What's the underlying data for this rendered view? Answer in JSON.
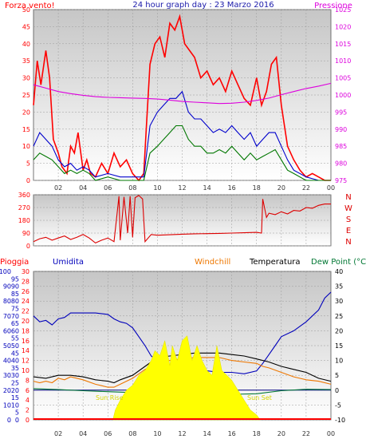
{
  "colors": {
    "wind": "#ff0000",
    "gust": "#0000cc",
    "avg": "#007700",
    "pressure": "#dd00dd",
    "direction": "#dd0000",
    "humidity": "#0000bb",
    "temperature": "#000000",
    "windchill": "#ee7700",
    "dewpoint": "#007733",
    "solar": "#ffff00",
    "rain": "#ff0000",
    "plot_bg_top": "#c8c8c8",
    "plot_bg_bottom": "#ffffff"
  },
  "chart_data": [
    {
      "id": "wind",
      "type": "line",
      "title": "24 hour graph day : 23 Marzo 2016",
      "ylabel": "Forza vento!",
      "y2label": "Pressione",
      "x_ticks": [
        "02",
        "04",
        "06",
        "08",
        "10",
        "12",
        "14",
        "16",
        "18",
        "20",
        "22",
        "00"
      ],
      "ylim": [
        0,
        50
      ],
      "y_ticks": [
        0,
        5,
        10,
        15,
        20,
        25,
        30,
        35,
        40,
        45,
        50
      ],
      "y2lim": [
        975,
        1025
      ],
      "y2_ticks": [
        975,
        980,
        985,
        990,
        995,
        1000,
        1005,
        1010,
        1015,
        1020,
        1025
      ],
      "series": [
        {
          "color_key": "wind",
          "x": [
            0,
            0.3,
            0.6,
            1,
            1.3,
            1.6,
            2,
            2.3,
            2.7,
            3,
            3.3,
            3.6,
            4,
            4.3,
            4.6,
            5,
            5.5,
            6,
            6.5,
            7,
            7.5,
            8,
            8.5,
            8.9,
            9.1,
            9.4,
            9.8,
            10.2,
            10.6,
            11,
            11.4,
            11.8,
            12.2,
            12.6,
            13,
            13.5,
            14,
            14.5,
            15,
            15.5,
            16,
            16.5,
            17,
            17.5,
            18,
            18.4,
            18.8,
            19.2,
            19.6,
            20,
            20.5,
            21,
            21.5,
            22,
            22.5,
            23,
            23.5,
            24
          ],
          "y": [
            22,
            35,
            28,
            38,
            30,
            12,
            8,
            4,
            2,
            10,
            8,
            14,
            3,
            6,
            2,
            1,
            5,
            2,
            8,
            4,
            6,
            2,
            0,
            2,
            15,
            34,
            40,
            42,
            36,
            46,
            44,
            48,
            40,
            38,
            36,
            30,
            32,
            28,
            30,
            26,
            32,
            28,
            24,
            22,
            30,
            22,
            26,
            34,
            36,
            22,
            10,
            6,
            3,
            1,
            2,
            1,
            0,
            0
          ]
        },
        {
          "color_key": "gust",
          "x": [
            0,
            0.5,
            1,
            1.5,
            2,
            2.5,
            3,
            3.5,
            4,
            4.5,
            5,
            6,
            7,
            8,
            8.9,
            9.4,
            10,
            10.5,
            11,
            11.5,
            12,
            12.5,
            13,
            13.5,
            14,
            14.5,
            15,
            15.5,
            16,
            16.5,
            17,
            17.5,
            18,
            18.5,
            19,
            19.5,
            20,
            20.5,
            21,
            22,
            23,
            24
          ],
          "y": [
            10,
            14,
            12,
            10,
            6,
            4,
            5,
            3,
            4,
            3,
            1,
            2,
            1,
            1,
            1,
            16,
            20,
            22,
            24,
            24,
            26,
            20,
            18,
            18,
            16,
            14,
            15,
            14,
            16,
            14,
            12,
            14,
            10,
            12,
            14,
            14,
            10,
            6,
            3,
            1,
            0,
            0
          ]
        },
        {
          "color_key": "avg",
          "x": [
            0,
            0.5,
            1,
            1.5,
            2,
            2.5,
            3,
            3.5,
            4,
            4.5,
            5,
            6,
            7,
            8,
            8.9,
            9.4,
            10,
            10.5,
            11,
            11.5,
            12,
            12.5,
            13,
            13.5,
            14,
            14.5,
            15,
            15.5,
            16,
            16.5,
            17,
            17.5,
            18,
            18.5,
            19,
            19.5,
            20,
            20.5,
            21,
            22,
            23,
            24
          ],
          "y": [
            6,
            8,
            7,
            6,
            4,
            2,
            3,
            2,
            3,
            2,
            0,
            1,
            0,
            0,
            0,
            8,
            10,
            12,
            14,
            16,
            16,
            12,
            10,
            10,
            8,
            8,
            9,
            8,
            10,
            8,
            6,
            8,
            6,
            7,
            8,
            9,
            6,
            3,
            2,
            0,
            0,
            0
          ]
        },
        {
          "color_key": "pressure",
          "axis": "y2",
          "x": [
            0,
            1,
            2,
            3,
            4,
            5,
            6,
            7,
            8,
            9,
            10,
            11,
            12,
            13,
            14,
            15,
            16,
            17,
            18,
            19,
            20,
            21,
            22,
            23,
            24
          ],
          "y": [
            1003,
            1002,
            1001,
            1000.4,
            999.9,
            999.5,
            999.3,
            999.2,
            999.1,
            999,
            998.8,
            998.5,
            998.1,
            997.9,
            997.7,
            997.5,
            997.6,
            997.9,
            998.4,
            999.1,
            1000.1,
            1001,
            1001.9,
            1002.6,
            1003.4
          ]
        }
      ]
    },
    {
      "id": "direction",
      "type": "line",
      "ylim": [
        0,
        360
      ],
      "y_ticks": [
        0,
        90,
        180,
        270,
        360
      ],
      "cardinal_labels": [
        "N",
        "W",
        "S",
        "E",
        "N"
      ],
      "series": [
        {
          "color_key": "direction",
          "x": [
            0,
            0.5,
            1,
            1.5,
            2,
            2.5,
            3,
            3.5,
            4,
            4.5,
            5,
            5.5,
            6,
            6.5,
            6.9,
            7,
            7.3,
            7.6,
            7.8,
            8,
            8.2,
            8.5,
            8.8,
            9,
            9.5,
            10,
            11,
            12,
            13,
            14,
            15,
            16,
            17,
            18,
            18.4,
            18.5,
            18.8,
            19,
            19.5,
            20,
            20.5,
            21,
            21.5,
            22,
            22.5,
            23,
            23.5,
            24
          ],
          "y": [
            30,
            50,
            60,
            40,
            55,
            70,
            45,
            60,
            80,
            55,
            20,
            40,
            55,
            30,
            350,
            40,
            345,
            90,
            350,
            60,
            340,
            355,
            330,
            30,
            80,
            75,
            78,
            82,
            85,
            86,
            88,
            90,
            92,
            95,
            90,
            330,
            200,
            230,
            220,
            240,
            225,
            250,
            245,
            270,
            265,
            285,
            295,
            295
          ]
        }
      ]
    },
    {
      "id": "weather",
      "type": "line",
      "labels": {
        "rain": "Pioggia",
        "humidity": "Umidita",
        "windchill": "Windchill",
        "temperature": "Temperatura",
        "dewpoint": "Dew Point (°C",
        "sunrise": "Sun Rise",
        "sunset": "Sun Set"
      },
      "humidity_ticks": [
        0,
        10,
        20,
        30,
        40,
        50,
        60,
        70,
        80,
        90,
        100
      ],
      "rain_ticks": [
        0,
        2,
        4,
        6,
        8,
        10,
        12,
        14,
        16,
        18,
        20,
        22,
        24,
        26,
        28,
        30
      ],
      "blue_ticks": [
        0,
        5,
        10,
        15,
        20,
        25,
        30,
        35,
        40,
        45,
        50,
        55,
        60,
        65,
        70,
        75,
        80,
        85,
        90,
        95
      ],
      "temp_ticks": [
        -10,
        -5,
        0,
        5,
        10,
        15,
        20,
        25,
        30,
        35,
        40
      ],
      "templim": [
        -10,
        40
      ],
      "x_ticks": [
        "02",
        "04",
        "06",
        "08",
        "10",
        "12",
        "14",
        "16",
        "18",
        "20",
        "22",
        "00"
      ],
      "series": [
        {
          "color_key": "humidity",
          "axis": "humidity",
          "x": [
            0,
            0.5,
            1,
            1.5,
            2,
            2.5,
            3,
            4,
            5,
            6,
            6.5,
            7,
            7.5,
            8,
            8.5,
            9,
            9.5,
            10,
            10.5,
            11,
            12,
            13,
            14,
            15,
            16,
            17,
            18,
            18.5,
            19,
            19.5,
            20,
            21,
            22,
            23,
            23.5,
            24
          ],
          "y": [
            70,
            66,
            67,
            64,
            68,
            69,
            72,
            72,
            72,
            71,
            68,
            66,
            65,
            62,
            56,
            50,
            43,
            40,
            38,
            37,
            35,
            37,
            33,
            32,
            32,
            31,
            33,
            38,
            44,
            50,
            56,
            60,
            66,
            74,
            82,
            86
          ]
        },
        {
          "color_key": "temperature",
          "axis": "temp",
          "x": [
            0,
            1,
            2,
            3,
            4,
            5,
            6,
            6.5,
            7,
            8,
            9,
            10,
            11,
            12,
            13,
            14,
            15,
            16,
            17,
            18,
            19,
            20,
            21,
            22,
            23,
            24
          ],
          "y": [
            4.5,
            4,
            5,
            5,
            4.5,
            3.5,
            3,
            2.5,
            3.5,
            5,
            8,
            11,
            11.5,
            12,
            12.5,
            12.5,
            12.5,
            12,
            11.5,
            10.5,
            9.5,
            8,
            7,
            6,
            4,
            3
          ]
        },
        {
          "color_key": "windchill",
          "axis": "temp",
          "x": [
            0,
            0.5,
            1,
            1.5,
            2,
            2.5,
            3,
            4,
            5,
            5.5,
            6,
            6.5,
            7,
            8,
            9,
            9.5,
            10,
            11,
            12,
            13,
            14,
            15,
            16,
            17,
            18,
            18.5,
            19,
            20,
            21,
            22,
            23,
            24
          ],
          "y": [
            3,
            2.5,
            3,
            2.5,
            4,
            3.5,
            4.5,
            3.5,
            2,
            1.5,
            1,
            1,
            2,
            4,
            7,
            8,
            9.5,
            10,
            10.5,
            11,
            11,
            11,
            10,
            9.5,
            9,
            8,
            7.5,
            6,
            4.5,
            3.5,
            3,
            2
          ]
        },
        {
          "color_key": "dewpoint",
          "axis": "temp",
          "x": [
            0,
            2,
            4,
            6,
            8,
            10,
            12,
            14,
            16,
            18,
            20,
            22,
            24
          ],
          "y": [
            0.5,
            0.2,
            -0.2,
            -0.5,
            -0.8,
            -1.5,
            -1.8,
            -1.5,
            -1.4,
            -1.2,
            -0.2,
            0.3,
            0.2
          ]
        },
        {
          "color_key": "solar",
          "type": "area",
          "axis": "rain",
          "x": [
            6.4,
            6.6,
            7,
            7.5,
            8,
            8.5,
            9,
            9.5,
            9.8,
            10.2,
            10.6,
            11,
            11.2,
            11.6,
            12,
            12.4,
            12.8,
            13.2,
            13.6,
            14,
            14.4,
            14.8,
            15.2,
            15.6,
            16,
            16.5,
            17,
            17.5,
            18,
            18.3
          ],
          "y": [
            0,
            2,
            4,
            6,
            7,
            9,
            10,
            12,
            14,
            13,
            16,
            11,
            15,
            12,
            16,
            17,
            12,
            15,
            12,
            10,
            9,
            15,
            10,
            9,
            8,
            6,
            4,
            2,
            1,
            0
          ]
        }
      ]
    }
  ]
}
